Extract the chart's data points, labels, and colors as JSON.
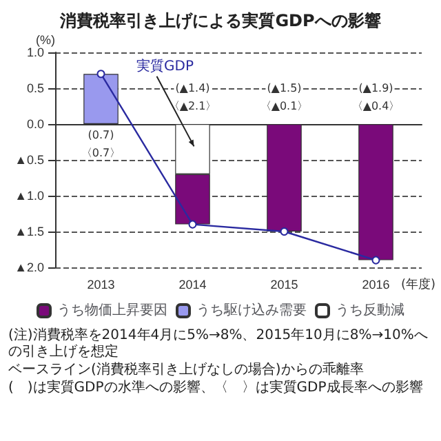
{
  "chart_data": {
    "type": "bar",
    "title": "消費税率引き上げによる実質GDPへの影響",
    "ylabel": "(%)",
    "xlabel": "(年度)",
    "categories": [
      "2013",
      "2014",
      "2015",
      "2016"
    ],
    "stacked": true,
    "series": [
      {
        "name": "うち反動減",
        "color": "#ffffff",
        "values": [
          null,
          -0.7,
          null,
          null
        ]
      },
      {
        "name": "うち駆け込み需要",
        "color": "#9999ee",
        "values": [
          0.7,
          null,
          null,
          null
        ]
      },
      {
        "name": "うち物価上昇要因",
        "color": "#7a0a7a",
        "values": [
          null,
          -0.7,
          -1.5,
          -1.9
        ]
      },
      {
        "name": "実質GDP",
        "type": "line",
        "color": "#2a2aa0",
        "values": [
          0.7,
          -1.4,
          -1.5,
          -1.9
        ]
      }
    ],
    "ylim": [
      -2,
      1
    ],
    "yticks": [
      {
        "value": -2,
        "label": "▲2.0"
      },
      {
        "value": -1.5,
        "label": "▲1.5"
      },
      {
        "value": -1,
        "label": "▲1.0"
      },
      {
        "value": -0.5,
        "label": "▲0.5"
      },
      {
        "value": 0,
        "label": "0.0"
      },
      {
        "value": 0.5,
        "label": "0.5"
      },
      {
        "value": 1,
        "label": "1.0"
      }
    ],
    "grid": "y",
    "legend": "bottom",
    "marker": "circle",
    "line_style": "solid",
    "annotations": [
      "(0.7)",
      "〈0.7〉",
      "(▲1.4)",
      "〈▲2.1〉",
      "(▲1.5)",
      "〈▲0.1〉",
      "(▲1.9)",
      "〈▲0.4〉",
      "(注)消費税率を2014年4月に5%→8%、2015年10月に8%→10%への引き上げを想定",
      "ベースライン(消費税率引き上げなしの場合)からの乖離率",
      "(　)は実質GDPの水準への影響、〈　〉は実質GDP成長率への影響"
    ]
  }
}
